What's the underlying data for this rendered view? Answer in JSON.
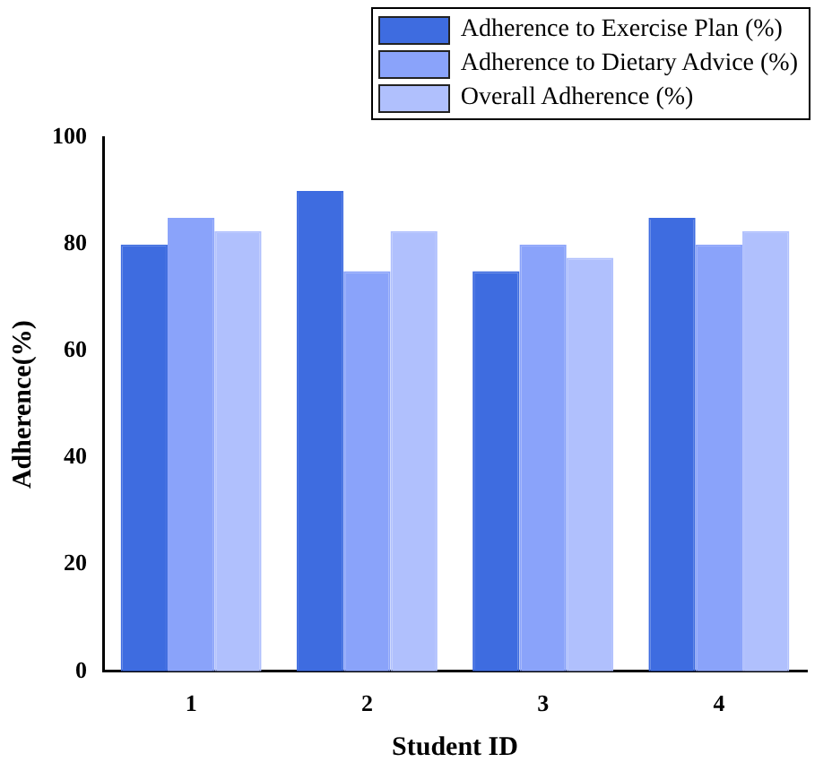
{
  "chart_data": {
    "type": "bar",
    "xlabel": "Student ID",
    "ylabel": "Adherence(%)",
    "categories": [
      "1",
      "2",
      "3",
      "4"
    ],
    "series": [
      {
        "name": "Adherence to Exercise Plan (%)",
        "color": "#3e6ce0",
        "values": [
          80,
          90,
          75,
          85
        ]
      },
      {
        "name": "Adherence to Dietary Advice (%)",
        "color": "#8aa3fa",
        "values": [
          85,
          75,
          80,
          80
        ]
      },
      {
        "name": "Overall Adherence (%)",
        "color": "#b0c0fd",
        "values": [
          82.5,
          82.5,
          77.5,
          82.5
        ]
      }
    ],
    "ylim": [
      0,
      100
    ],
    "yticks": [
      0,
      20,
      40,
      60,
      80,
      100
    ],
    "grid": false,
    "legend": "top right"
  }
}
